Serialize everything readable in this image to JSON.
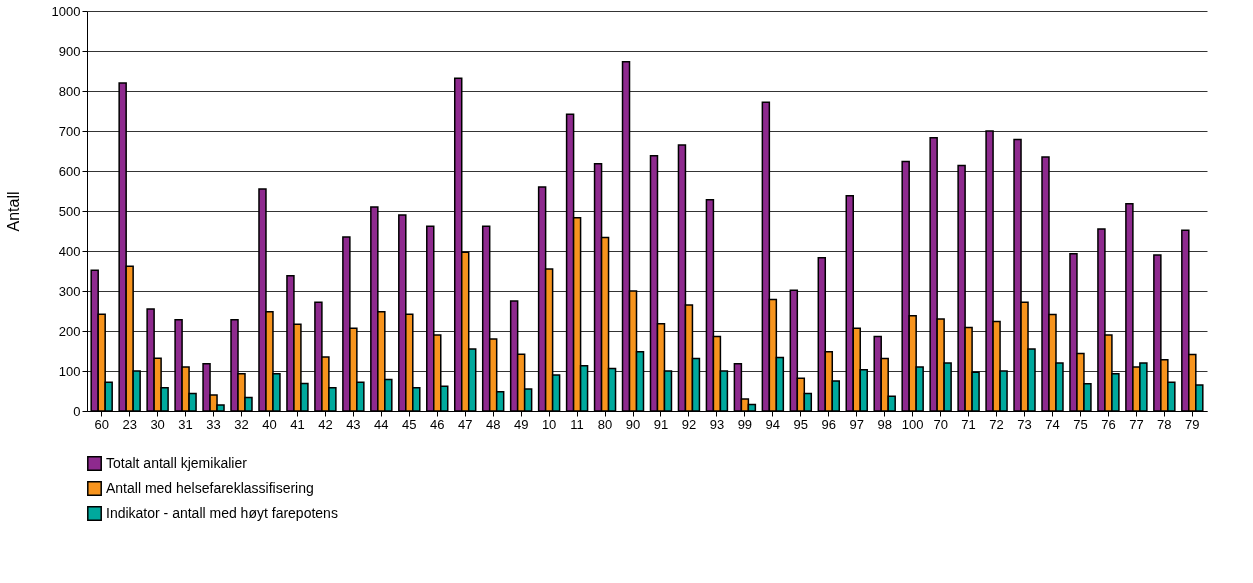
{
  "chart_data": {
    "type": "bar",
    "ylabel": "Antall",
    "categories": [
      "60",
      "23",
      "30",
      "31",
      "33",
      "32",
      "40",
      "41",
      "42",
      "43",
      "44",
      "45",
      "46",
      "47",
      "48",
      "49",
      "10",
      "11",
      "80",
      "90",
      "91",
      "92",
      "93",
      "99",
      "94",
      "95",
      "96",
      "97",
      "98",
      "100",
      "70",
      "71",
      "72",
      "73",
      "74",
      "75",
      "76",
      "77",
      "78",
      "79"
    ],
    "series": [
      {
        "name": "Totalt antall kjemikalier",
        "color": "#8e2a8e",
        "values": [
          352,
          820,
          255,
          228,
          118,
          228,
          555,
          338,
          272,
          435,
          510,
          490,
          462,
          832,
          462,
          275,
          560,
          742,
          618,
          873,
          638,
          665,
          528,
          118,
          772,
          302,
          383,
          538,
          186,
          624,
          683,
          614,
          700,
          679,
          635,
          393,
          455,
          518,
          390,
          452
        ]
      },
      {
        "name": "Antall med helsefareklassifisering",
        "color": "#f7941d",
        "values": [
          242,
          362,
          132,
          110,
          40,
          93,
          248,
          217,
          135,
          207,
          248,
          242,
          190,
          397,
          180,
          142,
          355,
          483,
          434,
          300,
          218,
          265,
          186,
          30,
          279,
          82,
          148,
          207,
          131,
          238,
          230,
          209,
          224,
          272,
          241,
          144,
          190,
          110,
          128,
          141
        ]
      },
      {
        "name": "Indikator - antall med høyt farepotens",
        "color": "#00a99d",
        "values": [
          72,
          100,
          58,
          44,
          15,
          34,
          93,
          69,
          58,
          72,
          79,
          58,
          62,
          155,
          48,
          55,
          90,
          113,
          106,
          148,
          100,
          131,
          100,
          16,
          134,
          44,
          75,
          103,
          37,
          110,
          120,
          97,
          100,
          155,
          120,
          68,
          93,
          120,
          72,
          65
        ]
      }
    ],
    "ylim": [
      0,
      1000
    ],
    "yticks": [
      0,
      100,
      200,
      300,
      400,
      500,
      600,
      700,
      800,
      900,
      1000
    ],
    "grid": "y",
    "legend": "bottom left"
  }
}
